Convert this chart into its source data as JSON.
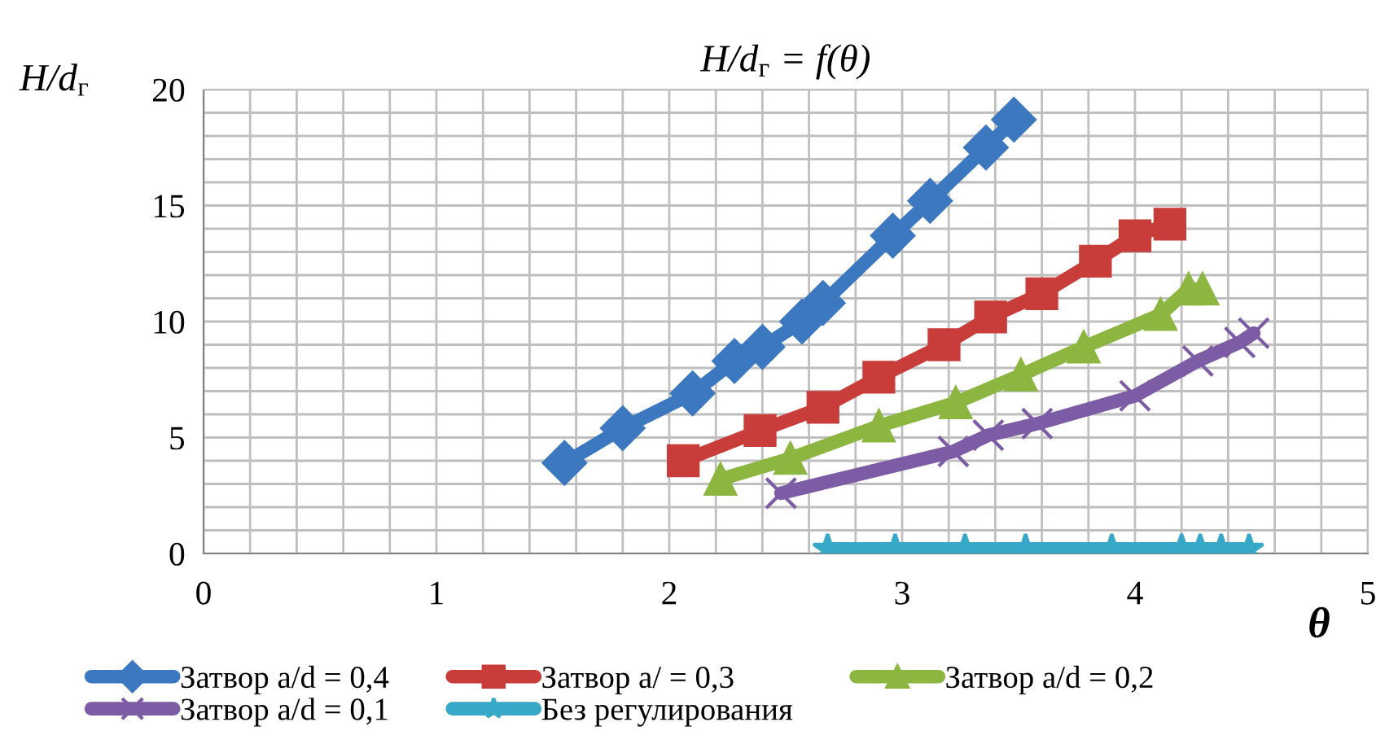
{
  "chart_data": {
    "type": "line",
    "title": "H/d$_{г}$ = f(θ)",
    "xlabel": "θ",
    "ylabel": "H/d$_{г}$",
    "xlim": [
      0,
      5
    ],
    "xticks": [
      0,
      1,
      2,
      3,
      4,
      5
    ],
    "ylim": [
      0,
      20
    ],
    "yticks": [
      0,
      5,
      10,
      15,
      20
    ],
    "grid": true,
    "legend": "bottom",
    "line_style": "solid",
    "series": [
      {
        "name": "Затвор a/d = 0,4",
        "color": "#3c78c0",
        "marker": "diamond",
        "x": [
          1.55,
          1.8,
          2.1,
          2.28,
          2.4,
          2.57,
          2.66,
          2.96,
          3.12,
          3.36,
          3.48
        ],
        "values": [
          3.9,
          5.4,
          6.9,
          8.3,
          8.9,
          10.0,
          10.8,
          13.7,
          15.2,
          17.5,
          18.7
        ]
      },
      {
        "name": "Затвор a/ = 0,3",
        "color": "#c83c3a",
        "marker": "square",
        "x": [
          2.06,
          2.39,
          2.66,
          2.9,
          3.18,
          3.38,
          3.6,
          3.83,
          4.0,
          4.15
        ],
        "values": [
          4.0,
          5.3,
          6.3,
          7.6,
          9.0,
          10.2,
          11.2,
          12.6,
          13.7,
          14.2
        ]
      },
      {
        "name": "Затвор a/d = 0,2",
        "color": "#8cb640",
        "marker": "triangle",
        "x": [
          2.22,
          2.52,
          2.9,
          3.23,
          3.51,
          3.78,
          4.11,
          4.23,
          4.29
        ],
        "values": [
          3.2,
          4.1,
          5.5,
          6.5,
          7.7,
          8.9,
          10.3,
          11.4,
          11.4
        ]
      },
      {
        "name": "Затвор a/d = 0,1",
        "color": "#7d5ca6",
        "marker": "cross",
        "x": [
          2.48,
          3.22,
          3.37,
          3.58,
          4.0,
          4.27,
          4.45,
          4.51
        ],
        "values": [
          2.6,
          4.4,
          5.1,
          5.6,
          6.8,
          8.3,
          9.1,
          9.5
        ]
      },
      {
        "name": "Без регулирования",
        "color": "#38a8c8",
        "marker": "star",
        "x": [
          2.68,
          2.97,
          3.27,
          3.53,
          3.9,
          4.2,
          4.28,
          4.37,
          4.49
        ],
        "values": [
          0.2,
          0.2,
          0.2,
          0.2,
          0.2,
          0.2,
          0.2,
          0.2,
          0.2
        ]
      }
    ]
  }
}
